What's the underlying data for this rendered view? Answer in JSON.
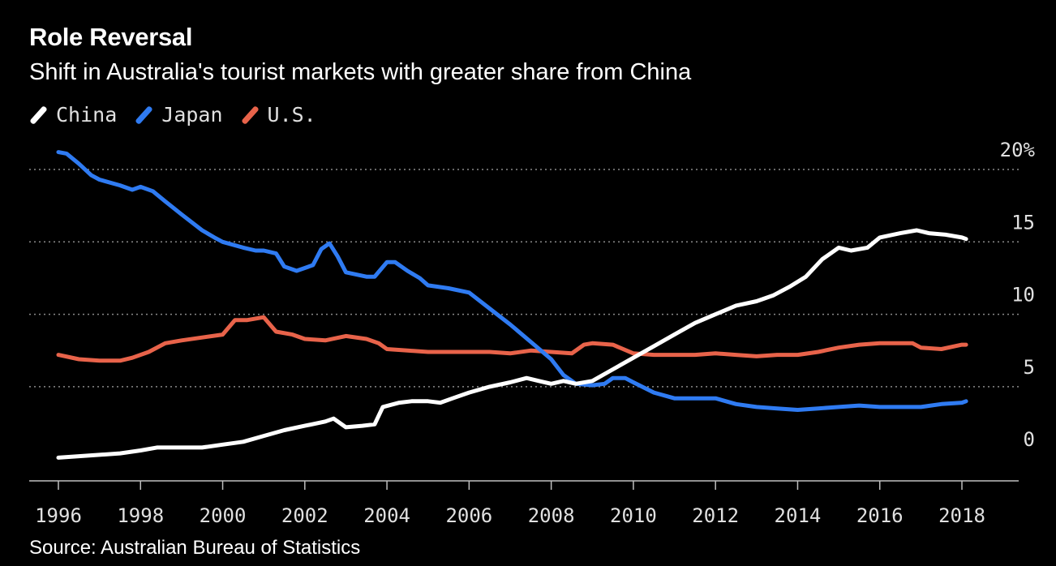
{
  "header": {
    "title": "Role Reversal",
    "subtitle": "Shift in Australia's tourist markets with greater share from China"
  },
  "legend": [
    {
      "label": "China",
      "color": "#ffffff"
    },
    {
      "label": "Japan",
      "color": "#2f7bf2"
    },
    {
      "label": "U.S.",
      "color": "#e8634a"
    }
  ],
  "footer": {
    "source": "Source: Australian Bureau of Statistics"
  },
  "chart_data": {
    "type": "line",
    "title": "Role Reversal",
    "subtitle": "Shift in Australia's tourist markets with greater share from China",
    "xlabel": "",
    "ylabel": "",
    "xlim": [
      1996,
      2019.5
    ],
    "ylim": [
      -1.5,
      20
    ],
    "x_ticks": [
      "1996",
      "1998",
      "2000",
      "2002",
      "2004",
      "2006",
      "2008",
      "2010",
      "2012",
      "2014",
      "2016",
      "2018"
    ],
    "y_ticks": [
      {
        "value": 20,
        "label": "20%"
      },
      {
        "value": 15,
        "label": "15"
      },
      {
        "value": 10,
        "label": "10"
      },
      {
        "value": 5,
        "label": "5"
      },
      {
        "value": 0,
        "label": "0"
      }
    ],
    "grid": "horizontal-dotted",
    "legend_position": "top-left",
    "series": [
      {
        "name": "China",
        "color": "#ffffff",
        "points": [
          [
            1996.0,
            0.1
          ],
          [
            1996.5,
            0.2
          ],
          [
            1997.0,
            0.3
          ],
          [
            1997.5,
            0.4
          ],
          [
            1998.0,
            0.6
          ],
          [
            1998.4,
            0.8
          ],
          [
            1999.0,
            0.8
          ],
          [
            1999.5,
            0.8
          ],
          [
            2000.0,
            1.0
          ],
          [
            2000.5,
            1.2
          ],
          [
            2001.0,
            1.6
          ],
          [
            2001.5,
            2.0
          ],
          [
            2002.0,
            2.3
          ],
          [
            2002.5,
            2.6
          ],
          [
            2002.7,
            2.8
          ],
          [
            2003.0,
            2.2
          ],
          [
            2003.4,
            2.3
          ],
          [
            2003.7,
            2.4
          ],
          [
            2003.9,
            3.6
          ],
          [
            2004.3,
            3.9
          ],
          [
            2004.6,
            4.0
          ],
          [
            2005.0,
            4.0
          ],
          [
            2005.3,
            3.9
          ],
          [
            2005.6,
            4.2
          ],
          [
            2006.0,
            4.6
          ],
          [
            2006.5,
            5.0
          ],
          [
            2007.0,
            5.3
          ],
          [
            2007.4,
            5.6
          ],
          [
            2007.7,
            5.4
          ],
          [
            2008.0,
            5.2
          ],
          [
            2008.3,
            5.4
          ],
          [
            2008.6,
            5.2
          ],
          [
            2009.0,
            5.4
          ],
          [
            2009.5,
            6.2
          ],
          [
            2010.0,
            7.0
          ],
          [
            2010.5,
            7.8
          ],
          [
            2011.0,
            8.6
          ],
          [
            2011.5,
            9.4
          ],
          [
            2012.0,
            10.0
          ],
          [
            2012.5,
            10.6
          ],
          [
            2013.0,
            10.9
          ],
          [
            2013.4,
            11.3
          ],
          [
            2013.8,
            11.9
          ],
          [
            2014.2,
            12.6
          ],
          [
            2014.6,
            13.8
          ],
          [
            2015.0,
            14.6
          ],
          [
            2015.3,
            14.4
          ],
          [
            2015.7,
            14.6
          ],
          [
            2016.0,
            15.3
          ],
          [
            2016.5,
            15.6
          ],
          [
            2016.9,
            15.8
          ],
          [
            2017.2,
            15.6
          ],
          [
            2017.6,
            15.5
          ],
          [
            2018.0,
            15.3
          ],
          [
            2018.1,
            15.2
          ]
        ]
      },
      {
        "name": "Japan",
        "color": "#2f7bf2",
        "points": [
          [
            1996.0,
            21.2
          ],
          [
            1996.2,
            21.1
          ],
          [
            1996.5,
            20.4
          ],
          [
            1996.8,
            19.6
          ],
          [
            1997.0,
            19.3
          ],
          [
            1997.5,
            18.9
          ],
          [
            1997.8,
            18.6
          ],
          [
            1998.0,
            18.8
          ],
          [
            1998.3,
            18.5
          ],
          [
            1998.6,
            17.8
          ],
          [
            1999.0,
            16.9
          ],
          [
            1999.5,
            15.8
          ],
          [
            1999.8,
            15.3
          ],
          [
            2000.0,
            15.0
          ],
          [
            2000.5,
            14.6
          ],
          [
            2000.8,
            14.4
          ],
          [
            2001.0,
            14.4
          ],
          [
            2001.3,
            14.2
          ],
          [
            2001.5,
            13.3
          ],
          [
            2001.8,
            13.0
          ],
          [
            2002.0,
            13.2
          ],
          [
            2002.2,
            13.4
          ],
          [
            2002.4,
            14.5
          ],
          [
            2002.6,
            14.9
          ],
          [
            2002.8,
            14.0
          ],
          [
            2003.0,
            12.9
          ],
          [
            2003.5,
            12.6
          ],
          [
            2003.7,
            12.6
          ],
          [
            2004.0,
            13.6
          ],
          [
            2004.2,
            13.6
          ],
          [
            2004.5,
            13.0
          ],
          [
            2004.8,
            12.5
          ],
          [
            2005.0,
            12.0
          ],
          [
            2005.5,
            11.8
          ],
          [
            2006.0,
            11.5
          ],
          [
            2006.5,
            10.4
          ],
          [
            2007.0,
            9.3
          ],
          [
            2007.5,
            8.1
          ],
          [
            2008.0,
            6.9
          ],
          [
            2008.3,
            5.8
          ],
          [
            2008.6,
            5.2
          ],
          [
            2009.0,
            5.1
          ],
          [
            2009.3,
            5.2
          ],
          [
            2009.5,
            5.6
          ],
          [
            2009.8,
            5.6
          ],
          [
            2010.0,
            5.3
          ],
          [
            2010.5,
            4.6
          ],
          [
            2011.0,
            4.2
          ],
          [
            2011.5,
            4.2
          ],
          [
            2012.0,
            4.2
          ],
          [
            2012.5,
            3.8
          ],
          [
            2013.0,
            3.6
          ],
          [
            2013.5,
            3.5
          ],
          [
            2014.0,
            3.4
          ],
          [
            2014.5,
            3.5
          ],
          [
            2015.0,
            3.6
          ],
          [
            2015.5,
            3.7
          ],
          [
            2016.0,
            3.6
          ],
          [
            2016.5,
            3.6
          ],
          [
            2017.0,
            3.6
          ],
          [
            2017.5,
            3.8
          ],
          [
            2018.0,
            3.9
          ],
          [
            2018.1,
            4.0
          ]
        ]
      },
      {
        "name": "U.S.",
        "color": "#e8634a",
        "points": [
          [
            1996.0,
            7.2
          ],
          [
            1996.5,
            6.9
          ],
          [
            1997.0,
            6.8
          ],
          [
            1997.5,
            6.8
          ],
          [
            1997.8,
            7.0
          ],
          [
            1998.2,
            7.4
          ],
          [
            1998.6,
            8.0
          ],
          [
            1999.0,
            8.2
          ],
          [
            1999.5,
            8.4
          ],
          [
            2000.0,
            8.6
          ],
          [
            2000.3,
            9.6
          ],
          [
            2000.6,
            9.6
          ],
          [
            2001.0,
            9.8
          ],
          [
            2001.3,
            8.8
          ],
          [
            2001.7,
            8.6
          ],
          [
            2002.0,
            8.3
          ],
          [
            2002.5,
            8.2
          ],
          [
            2003.0,
            8.5
          ],
          [
            2003.5,
            8.3
          ],
          [
            2003.8,
            8.0
          ],
          [
            2004.0,
            7.6
          ],
          [
            2004.5,
            7.5
          ],
          [
            2005.0,
            7.4
          ],
          [
            2005.5,
            7.4
          ],
          [
            2006.0,
            7.4
          ],
          [
            2006.5,
            7.4
          ],
          [
            2007.0,
            7.3
          ],
          [
            2007.5,
            7.5
          ],
          [
            2008.0,
            7.4
          ],
          [
            2008.5,
            7.3
          ],
          [
            2008.8,
            7.9
          ],
          [
            2009.0,
            8.0
          ],
          [
            2009.5,
            7.9
          ],
          [
            2010.0,
            7.3
          ],
          [
            2010.5,
            7.2
          ],
          [
            2011.0,
            7.2
          ],
          [
            2011.5,
            7.2
          ],
          [
            2012.0,
            7.3
          ],
          [
            2012.5,
            7.2
          ],
          [
            2013.0,
            7.1
          ],
          [
            2013.5,
            7.2
          ],
          [
            2014.0,
            7.2
          ],
          [
            2014.5,
            7.4
          ],
          [
            2015.0,
            7.7
          ],
          [
            2015.5,
            7.9
          ],
          [
            2016.0,
            8.0
          ],
          [
            2016.5,
            8.0
          ],
          [
            2016.8,
            8.0
          ],
          [
            2017.0,
            7.7
          ],
          [
            2017.5,
            7.6
          ],
          [
            2018.0,
            7.9
          ],
          [
            2018.1,
            7.9
          ]
        ]
      }
    ]
  }
}
